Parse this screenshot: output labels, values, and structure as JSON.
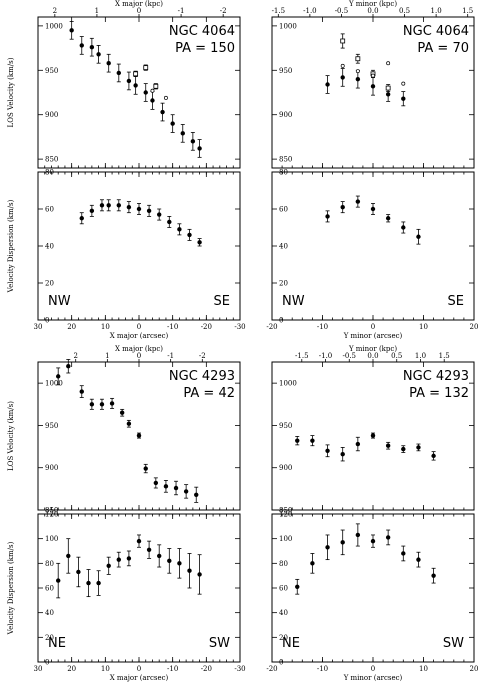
{
  "labels": {
    "x_major_kpc": "X major (kpc)",
    "y_minor_kpc": "Y minor (kpc)",
    "x_major_arcsec": "X major (arcsec)",
    "y_minor_arcsec": "Y minor (arcsec)",
    "los_velocity": "LOS Velocity (km/s)",
    "velocity_dispersion": "Velocity Dispersion (km/s)"
  },
  "chart_data": [
    {
      "type": "scatter",
      "galaxy": "NGC 4064",
      "pa": "PA = 150",
      "quantity": "los",
      "xlabel": "",
      "ylabel": "LOS Velocity (km/s)",
      "xlim": [
        30,
        -30
      ],
      "ylim": [
        840,
        1010
      ],
      "xticks": [
        30,
        20,
        10,
        0,
        -10,
        -20,
        -30
      ],
      "yticks": [
        850,
        900,
        950,
        1000
      ],
      "top_axis": {
        "label": "X major (kpc)",
        "ticks": [
          2,
          1,
          0,
          -1,
          -2
        ],
        "arcsec_per_kpc": 12.5
      },
      "series": [
        {
          "marker": "filled",
          "points": [
            [
              20,
              995,
              10
            ],
            [
              17,
              978,
              10
            ],
            [
              14,
              976,
              10
            ],
            [
              12,
              968,
              10
            ],
            [
              9,
              958,
              10
            ],
            [
              6,
              947,
              10
            ],
            [
              3,
              938,
              10
            ],
            [
              1,
              933,
              10
            ],
            [
              -2,
              925,
              10
            ],
            [
              -4,
              916,
              10
            ],
            [
              -7,
              903,
              10
            ],
            [
              -10,
              890,
              10
            ],
            [
              -13,
              879,
              10
            ],
            [
              -16,
              870,
              10
            ],
            [
              -18,
              862,
              10
            ]
          ]
        },
        {
          "marker": "open",
          "points": [
            [
              1,
              946,
              3
            ],
            [
              -2,
              953,
              3
            ],
            [
              -5,
              932,
              3
            ]
          ]
        },
        {
          "marker": "star",
          "points": [
            [
              -4,
              927,
              0
            ],
            [
              -8,
              919,
              0
            ]
          ]
        }
      ]
    },
    {
      "type": "scatter",
      "galaxy": "NGC 4064",
      "pa": "PA = 70",
      "quantity": "los",
      "xlabel": "",
      "ylabel": "",
      "xlim": [
        -20,
        20
      ],
      "ylim": [
        840,
        1010
      ],
      "xticks": [
        -20,
        -10,
        0,
        10,
        20
      ],
      "yticks": [
        850,
        900,
        950,
        1000
      ],
      "top_axis": {
        "label": "Y minor (kpc)",
        "ticks": [
          -1.5,
          -1.0,
          -0.5,
          0.0,
          0.5,
          1.0,
          1.5
        ],
        "arcsec_per_kpc": 12.5
      },
      "series": [
        {
          "marker": "filled",
          "points": [
            [
              -9,
              934,
              10
            ],
            [
              -6,
              942,
              10
            ],
            [
              -3,
              940,
              10
            ],
            [
              0,
              932,
              10
            ],
            [
              3,
              923,
              8
            ],
            [
              6,
              918,
              8
            ]
          ]
        },
        {
          "marker": "open",
          "points": [
            [
              -6,
              983,
              8
            ],
            [
              -3,
              963,
              5
            ],
            [
              0,
              946,
              4
            ],
            [
              3,
              930,
              4
            ]
          ]
        },
        {
          "marker": "star",
          "points": [
            [
              -6,
              955,
              0
            ],
            [
              -3,
              949,
              0
            ],
            [
              0,
              944,
              0
            ],
            [
              3,
              958,
              0
            ],
            [
              6,
              935,
              0
            ]
          ]
        }
      ]
    },
    {
      "type": "scatter",
      "galaxy": "",
      "pa": "",
      "corner_left": "NW",
      "corner_right": "SE",
      "quantity": "sigma",
      "xlabel": "X major (arcsec)",
      "ylabel": "Velocity Dispersion (km/s)",
      "xlim": [
        30,
        -30
      ],
      "ylim": [
        0,
        80
      ],
      "xticks": [
        30,
        20,
        10,
        0,
        -10,
        -20,
        -30
      ],
      "yticks": [
        0,
        20,
        40,
        60,
        80
      ],
      "series": [
        {
          "marker": "filled",
          "points": [
            [
              17,
              55,
              3
            ],
            [
              14,
              59,
              3
            ],
            [
              11,
              62,
              3
            ],
            [
              9,
              62,
              3
            ],
            [
              6,
              62,
              3
            ],
            [
              3,
              61,
              3
            ],
            [
              0,
              60,
              3
            ],
            [
              -3,
              59,
              3
            ],
            [
              -6,
              57,
              3
            ],
            [
              -9,
              53,
              3
            ],
            [
              -12,
              49,
              3
            ],
            [
              -15,
              46,
              3
            ],
            [
              -18,
              42,
              2
            ]
          ]
        }
      ]
    },
    {
      "type": "scatter",
      "galaxy": "",
      "pa": "",
      "corner_left": "NW",
      "corner_right": "SE",
      "quantity": "sigma",
      "xlabel": "Y minor (arcsec)",
      "ylabel": "",
      "xlim": [
        -20,
        20
      ],
      "ylim": [
        0,
        80
      ],
      "xticks": [
        -20,
        -10,
        0,
        10,
        20
      ],
      "yticks": [
        0,
        20,
        40,
        60,
        80
      ],
      "series": [
        {
          "marker": "filled",
          "points": [
            [
              -9,
              56,
              3
            ],
            [
              -6,
              61,
              3
            ],
            [
              -3,
              64,
              3
            ],
            [
              0,
              60,
              3
            ],
            [
              3,
              55,
              2
            ],
            [
              6,
              50,
              3
            ],
            [
              9,
              45,
              4
            ]
          ]
        }
      ]
    },
    {
      "type": "scatter",
      "galaxy": "NGC 4293",
      "pa": "PA = 42",
      "quantity": "los",
      "xlabel": "",
      "ylabel": "LOS Velocity (km/s)",
      "xlim": [
        30,
        -30
      ],
      "ylim": [
        850,
        1025
      ],
      "xticks": [
        30,
        20,
        10,
        0,
        -10,
        -20,
        -30
      ],
      "yticks": [
        850,
        900,
        950,
        1000
      ],
      "top_axis": {
        "label": "X major (kpc)",
        "ticks": [
          2,
          1,
          0,
          -1,
          -2
        ],
        "arcsec_per_kpc": 9.4
      },
      "series": [
        {
          "marker": "filled",
          "points": [
            [
              24,
              1008,
              10
            ],
            [
              21,
              1020,
              8
            ],
            [
              17,
              990,
              7
            ],
            [
              14,
              975,
              6
            ],
            [
              11,
              975,
              6
            ],
            [
              8,
              976,
              6
            ],
            [
              5,
              965,
              4
            ],
            [
              3,
              952,
              4
            ],
            [
              0,
              938,
              3
            ],
            [
              -2,
              899,
              5
            ],
            [
              -5,
              882,
              6
            ],
            [
              -8,
              878,
              7
            ],
            [
              -11,
              876,
              8
            ],
            [
              -14,
              872,
              8
            ],
            [
              -17,
              868,
              9
            ]
          ]
        }
      ]
    },
    {
      "type": "scatter",
      "galaxy": "NGC 4293",
      "pa": "PA = 132",
      "quantity": "los",
      "xlabel": "",
      "ylabel": "",
      "xlim": [
        -20,
        20
      ],
      "ylim": [
        850,
        1025
      ],
      "xticks": [
        -20,
        -10,
        0,
        10,
        20
      ],
      "yticks": [
        850,
        900,
        950,
        1000
      ],
      "top_axis": {
        "label": "Y minor (kpc)",
        "ticks": [
          -1.5,
          -1.0,
          -0.5,
          0.0,
          0.5,
          1.0,
          1.5
        ],
        "arcsec_per_kpc": 9.4
      },
      "series": [
        {
          "marker": "filled",
          "points": [
            [
              -15,
              932,
              5
            ],
            [
              -12,
              932,
              6
            ],
            [
              -9,
              920,
              7
            ],
            [
              -6,
              916,
              8
            ],
            [
              -3,
              928,
              8
            ],
            [
              0,
              938,
              3
            ],
            [
              3,
              926,
              4
            ],
            [
              6,
              922,
              4
            ],
            [
              9,
              924,
              4
            ],
            [
              12,
              914,
              5
            ]
          ]
        }
      ]
    },
    {
      "type": "scatter",
      "galaxy": "",
      "pa": "",
      "corner_left": "NE",
      "corner_right": "SW",
      "quantity": "sigma",
      "xlabel": "X major (arcsec)",
      "ylabel": "Velocity Dispersion (km/s)",
      "xlim": [
        30,
        -30
      ],
      "ylim": [
        0,
        120
      ],
      "xticks": [
        30,
        20,
        10,
        0,
        -10,
        -20,
        -30
      ],
      "yticks": [
        0,
        20,
        40,
        60,
        80,
        100,
        120
      ],
      "series": [
        {
          "marker": "filled",
          "points": [
            [
              24,
              66,
              14
            ],
            [
              21,
              86,
              14
            ],
            [
              18,
              73,
              12
            ],
            [
              15,
              64,
              11
            ],
            [
              12,
              64,
              10
            ],
            [
              9,
              78,
              7
            ],
            [
              6,
              83,
              6
            ],
            [
              3,
              84,
              6
            ],
            [
              0,
              98,
              5
            ],
            [
              -3,
              91,
              7
            ],
            [
              -6,
              86,
              9
            ],
            [
              -9,
              82,
              10
            ],
            [
              -12,
              80,
              12
            ],
            [
              -15,
              74,
              14
            ],
            [
              -18,
              71,
              16
            ]
          ]
        }
      ]
    },
    {
      "type": "scatter",
      "galaxy": "",
      "pa": "",
      "corner_left": "NE",
      "corner_right": "SW",
      "quantity": "sigma",
      "xlabel": "Y minor (arcsec)",
      "ylabel": "",
      "xlim": [
        -20,
        20
      ],
      "ylim": [
        0,
        120
      ],
      "xticks": [
        -20,
        -10,
        0,
        10,
        20
      ],
      "yticks": [
        0,
        20,
        40,
        60,
        80,
        100,
        120
      ],
      "series": [
        {
          "marker": "filled",
          "points": [
            [
              -15,
              61,
              6
            ],
            [
              -12,
              80,
              8
            ],
            [
              -9,
              93,
              10
            ],
            [
              -6,
              97,
              10
            ],
            [
              -3,
              103,
              9
            ],
            [
              0,
              98,
              5
            ],
            [
              3,
              101,
              6
            ],
            [
              6,
              88,
              6
            ],
            [
              9,
              83,
              6
            ],
            [
              12,
              70,
              6
            ]
          ]
        }
      ]
    }
  ]
}
